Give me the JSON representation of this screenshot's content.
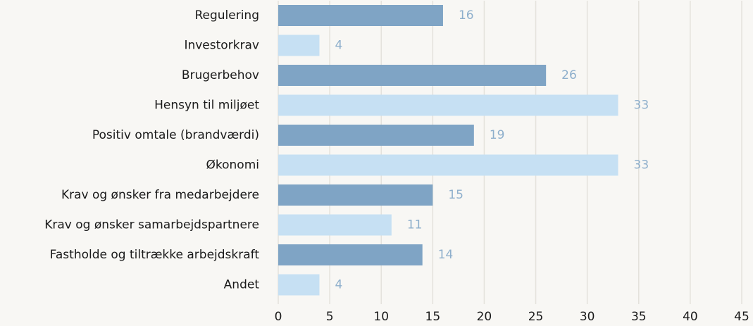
{
  "chart_data": {
    "type": "bar",
    "orientation": "horizontal",
    "categories": [
      "Regulering",
      "Investorkrav",
      "Brugerbehov",
      "Hensyn til miljøet",
      "Positiv omtale (brandværdi)",
      "Økonomi",
      "Krav og ønsker fra medarbejdere",
      "Krav og ønsker samarbejdspartnere",
      "Fastholde og tiltrække arbejdskraft",
      "Andet"
    ],
    "values": [
      16,
      4,
      26,
      33,
      19,
      33,
      15,
      11,
      14,
      4
    ],
    "colors": [
      "#7fa4c5",
      "#c6e0f3",
      "#7fa4c5",
      "#c6e0f3",
      "#7fa4c5",
      "#c6e0f3",
      "#7fa4c5",
      "#c6e0f3",
      "#7fa4c5",
      "#c6e0f3"
    ],
    "xlim": [
      0,
      45
    ],
    "xticks": [
      0,
      5,
      10,
      15,
      20,
      25,
      30,
      35,
      40,
      45
    ],
    "grid": true
  }
}
